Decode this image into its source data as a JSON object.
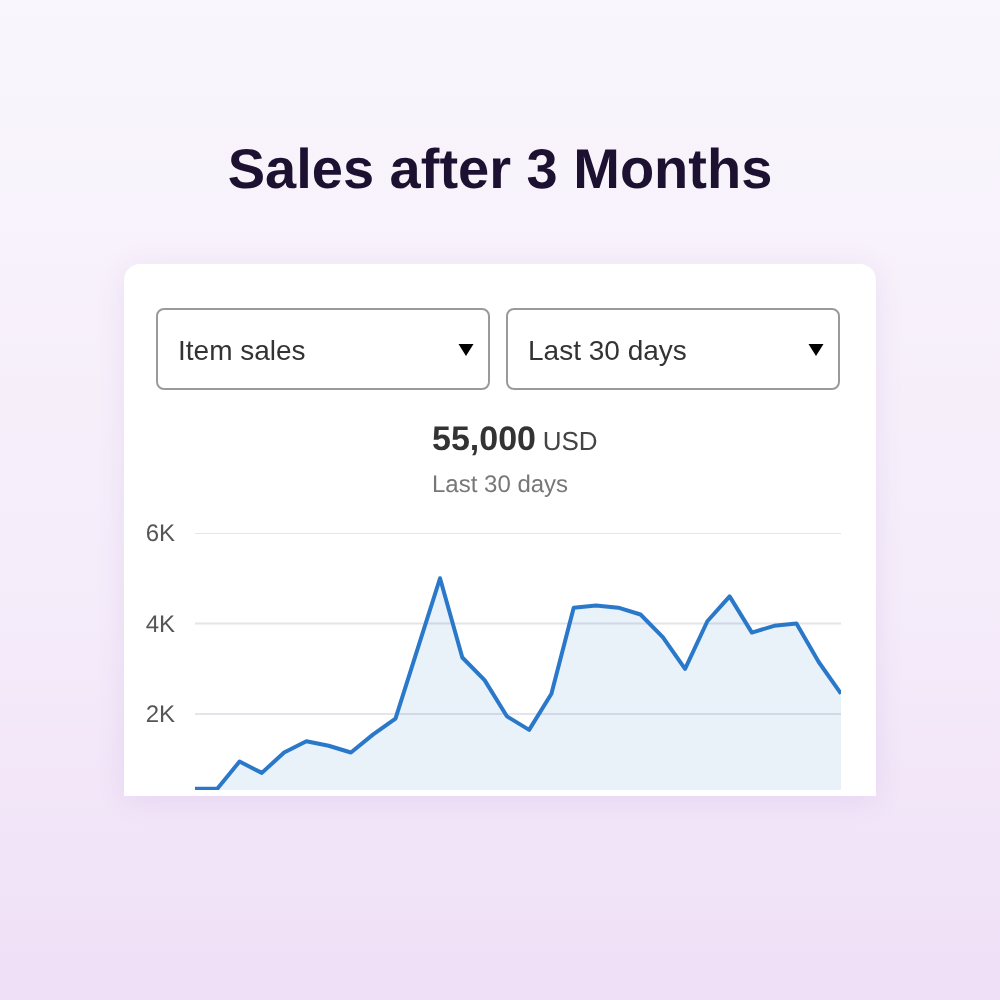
{
  "chart_data": {
    "type": "area",
    "title": "Sales after 3 Months",
    "subtitle": "55,000 USD",
    "annotations": [
      "Item sales",
      "Last 30 days",
      "Last 30 days"
    ],
    "categories": [
      null,
      null,
      null,
      null,
      null,
      null,
      null,
      null,
      null,
      null,
      null,
      null,
      null,
      null,
      null,
      null,
      null,
      null,
      null,
      null,
      null,
      null,
      null,
      null,
      null,
      null,
      null,
      null,
      null,
      null
    ],
    "series": [
      {
        "color": "#2a78c9",
        "values": [
          350,
          350,
          950,
          700,
          1150,
          1400,
          1300,
          1150,
          1550,
          1900,
          3450,
          5000,
          3250,
          2750,
          1950,
          1650,
          2450,
          4350,
          4400,
          4350,
          4200,
          3700,
          3000,
          4050,
          4600,
          3800,
          3950,
          4000,
          3150,
          2450
        ]
      }
    ],
    "ylim": [
      300,
      6000
    ],
    "yticks": [
      {
        "value": 2000,
        "label": "2K"
      },
      {
        "value": 4000,
        "label": "4K"
      },
      {
        "value": 6000,
        "label": "6K"
      }
    ],
    "grid": "y"
  }
}
